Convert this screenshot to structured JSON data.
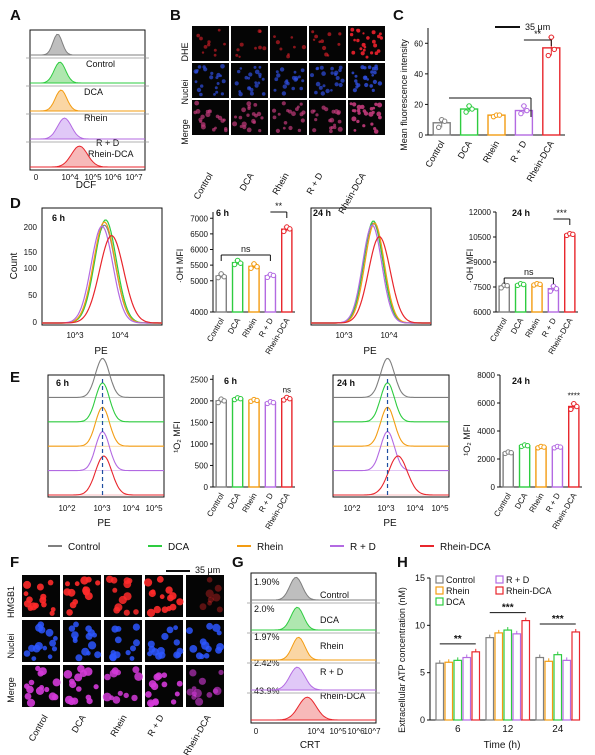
{
  "panel_labels": [
    "A",
    "B",
    "C",
    "D",
    "E",
    "F",
    "G",
    "H"
  ],
  "colors": {
    "Control": "#7f7f7f",
    "DCA": "#2ecc40",
    "Rhein": "#f39c12",
    "R + D": "#b36ae2",
    "Rhein-DCA": "#e8262c"
  },
  "panelA": {
    "xlabel": "DCF",
    "ticks": [
      "0",
      "10^4",
      "10^5",
      "10^6",
      "10^7"
    ],
    "groups": [
      "Control",
      "DCA",
      "Rhein",
      "R + D",
      "Rhein-DCA"
    ]
  },
  "panelB": {
    "scale": "35 μm",
    "rows": [
      "DHE",
      "Nuclei",
      "Merge"
    ],
    "cols": [
      "Control",
      "DCA",
      "Rhein",
      "R + D",
      "Rhein-DCA"
    ]
  },
  "panelF": {
    "scale": "35 μm",
    "rows": [
      "HMGB1",
      "Nuclei",
      "Merge"
    ],
    "cols": [
      "Control",
      "DCA",
      "Rhein",
      "R + D",
      "Rhein-DCA"
    ]
  },
  "panelG": {
    "xlabel": "CRT",
    "ticks": [
      "0",
      "10^4",
      "10^5",
      "10^6",
      "10^7"
    ],
    "percents": [
      "1.90%",
      "2.0%",
      "1.97%",
      "2.42%",
      "43.9%"
    ],
    "groups": [
      "Control",
      "DCA",
      "Rhein",
      "R + D",
      "Rhein-DCA"
    ]
  },
  "legendE": {
    "items": [
      "Control",
      "DCA",
      "Rhein",
      "R + D",
      "Rhein-DCA"
    ]
  },
  "flowD": {
    "xlabel": "PE",
    "ylabel": "Count",
    "yticks": [
      "0",
      "50",
      "100",
      "150",
      "200"
    ],
    "xticks": [
      "10^3",
      "10^4"
    ],
    "time6": "6 h",
    "time24": "24 h"
  },
  "flowE": {
    "xlabel": "PE",
    "xticks": [
      "10^2",
      "10^3",
      "10^4",
      "10^5"
    ],
    "time6": "6 h",
    "time24": "24 h"
  },
  "chart_data": [
    {
      "id": "C",
      "type": "bar",
      "categories": [
        "Control",
        "DCA",
        "Rhein",
        "R + D",
        "Rhein-DCA"
      ],
      "values": [
        8,
        17,
        13,
        16,
        57
      ],
      "points": [
        [
          5,
          10,
          9
        ],
        [
          15,
          19,
          17
        ],
        [
          12,
          13,
          13
        ],
        [
          14,
          19,
          16
        ],
        [
          52,
          64,
          56
        ]
      ],
      "ylabel": "Mean fluorescence intensity",
      "ylim": [
        0,
        70
      ],
      "yticks": [
        "0",
        "20",
        "40",
        "60"
      ],
      "sig": [
        {
          "text": "**",
          "from": 3,
          "to": 4
        }
      ]
    },
    {
      "id": "D6",
      "type": "bar",
      "title": "6 h",
      "categories": [
        "Control",
        "DCA",
        "Rhein",
        "R + D",
        "Rhein-DCA"
      ],
      "values": [
        5150,
        5580,
        5460,
        5160,
        6650
      ],
      "points": [
        [
          5100,
          5220,
          5130
        ],
        [
          5520,
          5650,
          5560
        ],
        [
          5400,
          5540,
          5450
        ],
        [
          5110,
          5200,
          5170
        ],
        [
          6580,
          6720,
          6660
        ]
      ],
      "ylabel": "·OH MFI",
      "ylim": [
        4000,
        7200
      ],
      "yticks": [
        "4000",
        "5000",
        "5500",
        "6000",
        "6500",
        "7000"
      ],
      "sig": [
        {
          "text": "ns",
          "from": 0,
          "to": 3
        },
        {
          "text": "**",
          "from": 3,
          "to": 4
        }
      ]
    },
    {
      "id": "D24",
      "type": "bar",
      "title": "24 h",
      "categories": [
        "Control",
        "DCA",
        "Rhein",
        "R + D",
        "Rhein-DCA"
      ],
      "values": [
        7550,
        7650,
        7660,
        7400,
        10650
      ],
      "points": [
        [
          7450,
          7620,
          7580
        ],
        [
          7600,
          7700,
          7650
        ],
        [
          7620,
          7700,
          7660
        ],
        [
          7250,
          7550,
          7400
        ],
        [
          10600,
          10700,
          10660
        ]
      ],
      "ylabel": "·OH MFI",
      "ylim": [
        6000,
        12000
      ],
      "yticks": [
        "6000",
        "7500",
        "9000",
        "10500",
        "12000"
      ],
      "sig": [
        {
          "text": "ns",
          "from": 0,
          "to": 3
        },
        {
          "text": "***",
          "from": 3,
          "to": 4
        }
      ]
    },
    {
      "id": "E6",
      "type": "bar",
      "title": "6 h",
      "categories": [
        "Control",
        "DCA",
        "Rhein",
        "R + D",
        "Rhein-DCA"
      ],
      "values": [
        2000,
        2050,
        2010,
        1960,
        2050
      ],
      "points": [
        [
          1960,
          2040,
          2000
        ],
        [
          2030,
          2070,
          2050
        ],
        [
          1990,
          2030,
          2010
        ],
        [
          1940,
          1980,
          1960
        ],
        [
          2020,
          2080,
          2050
        ]
      ],
      "ylabel": "¹O₂ MFI",
      "ylim": [
        0,
        2600
      ],
      "yticks": [
        "0",
        "500",
        "1000",
        "1500",
        "2000",
        "2500"
      ],
      "sig": [
        {
          "text": "ns",
          "at": 4
        }
      ]
    },
    {
      "id": "E24",
      "type": "bar",
      "title": "24 h",
      "categories": [
        "Control",
        "DCA",
        "Rhein",
        "R + D",
        "Rhein-DCA"
      ],
      "values": [
        2450,
        2950,
        2850,
        2850,
        5750
      ],
      "points": [
        [
          2400,
          2500,
          2450
        ],
        [
          2900,
          3000,
          2950
        ],
        [
          2800,
          2900,
          2850
        ],
        [
          2800,
          2900,
          2850
        ],
        [
          5550,
          5950,
          5750
        ]
      ],
      "ylabel": "¹O₂ MFI",
      "ylim": [
        0,
        8000
      ],
      "yticks": [
        "0",
        "2000",
        "4000",
        "6000",
        "8000"
      ],
      "sig": [
        {
          "text": "****",
          "at": 4
        }
      ]
    },
    {
      "id": "H",
      "type": "bar",
      "categories": [
        "6",
        "12",
        "24"
      ],
      "xlabel": "Time (h)",
      "ylabel": "Extracellular ATP concentration (nM)",
      "ylim": [
        0,
        15
      ],
      "yticks": [
        "0",
        "5",
        "10",
        "15"
      ],
      "series": [
        {
          "name": "Control",
          "values": [
            6.0,
            8.7,
            6.6
          ]
        },
        {
          "name": "Rhein",
          "values": [
            6.1,
            9.2,
            6.2
          ]
        },
        {
          "name": "DCA",
          "values": [
            6.3,
            9.5,
            6.9
          ]
        },
        {
          "name": "R + D",
          "values": [
            6.6,
            9.1,
            6.3
          ]
        },
        {
          "name": "Rhein-DCA",
          "values": [
            7.2,
            10.5,
            9.3
          ]
        }
      ],
      "sig": [
        {
          "text": "**"
        },
        {
          "text": "***"
        },
        {
          "text": "***"
        }
      ]
    }
  ]
}
